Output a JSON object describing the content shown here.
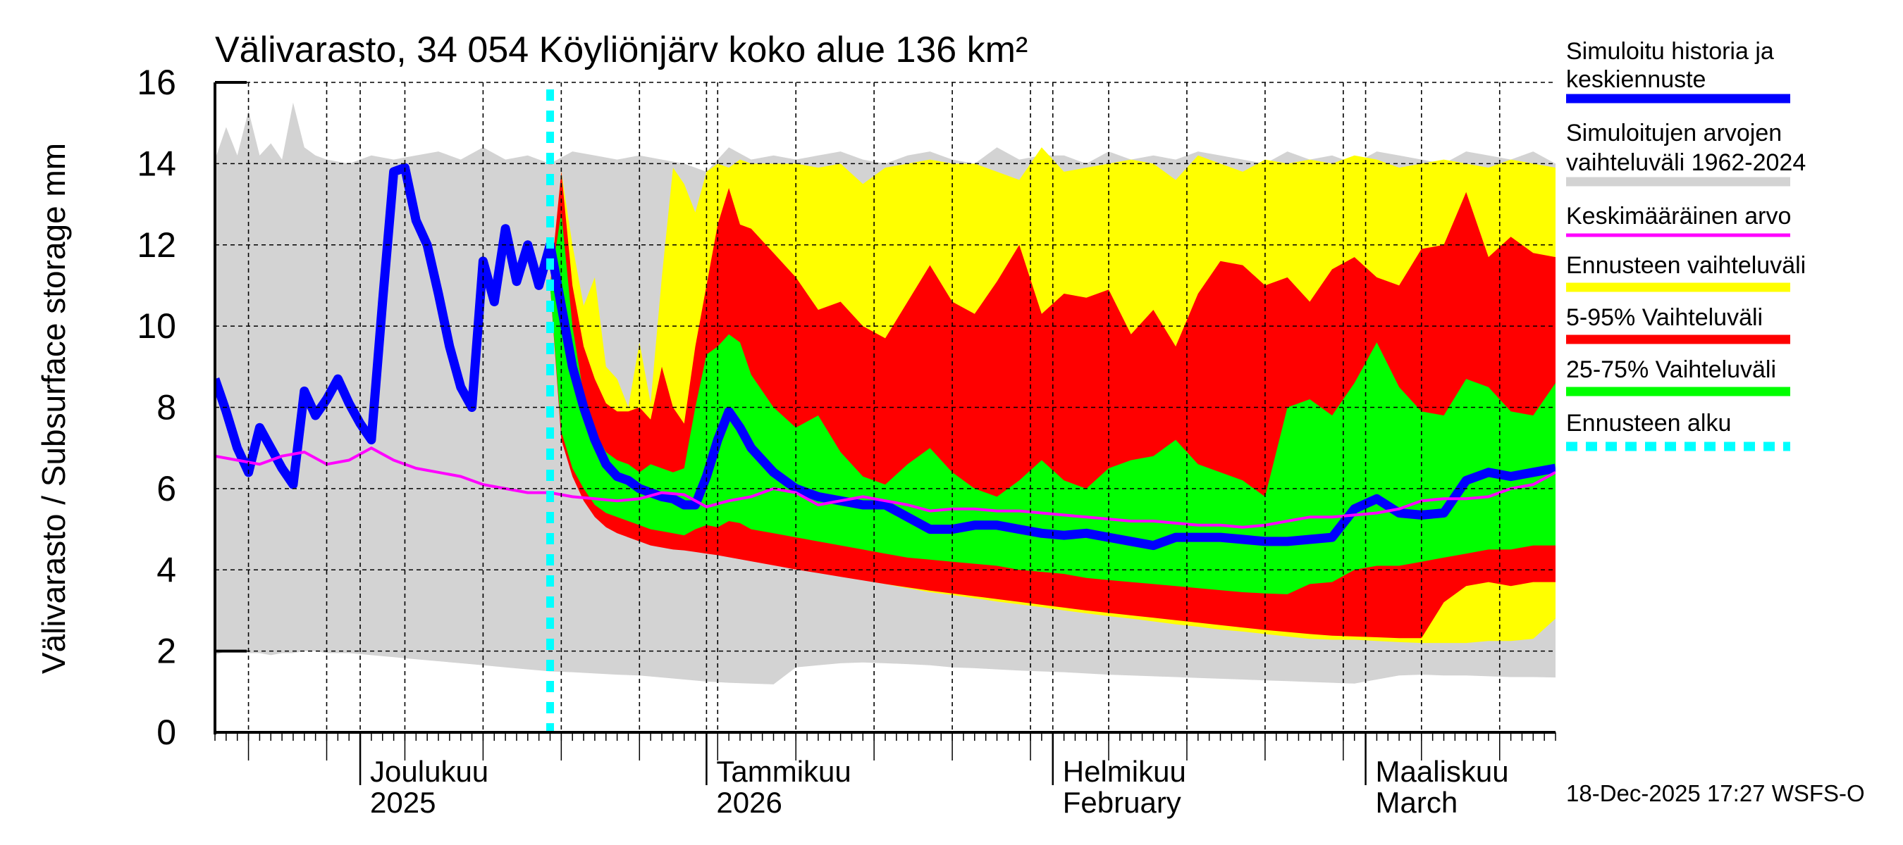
{
  "title": "Välivarasto, 34 054 Köyliönjärv koko alue 136 km²",
  "timestamp": "18-Dec-2025 17:27 WSFS-O",
  "chart_data": {
    "type": "area",
    "title": "Välivarasto, 34 054 Köyliönjärv koko alue 136 km²",
    "ylabel": "Välivarasto / Subsurface storage  mm",
    "xlabel": "",
    "ylim": [
      0,
      16
    ],
    "yticks": [
      "0",
      "2",
      "4",
      "6",
      "8",
      "10",
      "12",
      "14",
      "16"
    ],
    "x_unit": "days since 18-Nov-2025",
    "xlim": [
      0,
      120
    ],
    "grid": true,
    "months": [
      {
        "line1": "Joulukuu",
        "line2": "2025",
        "day": 13
      },
      {
        "line1": "Tammikuu",
        "line2": "2026",
        "day": 44
      },
      {
        "line1": "Helmikuu",
        "line2": "February",
        "day": 75
      },
      {
        "line1": "Maaliskuu",
        "line2": "March",
        "day": 103
      }
    ],
    "forecast_start_day": 30,
    "legend": [
      {
        "label": "Simuloitu historia ja",
        "label2": "keskiennuste",
        "color": "#0000ff",
        "style": "thick"
      },
      {
        "label": "Simuloitujen arvojen",
        "label2": "vaihteluväli 1962-2024",
        "color": "#d3d3d3",
        "style": "thick"
      },
      {
        "label": "Keskimääräinen arvo",
        "label2": "",
        "color": "#ff00ff",
        "style": "thin"
      },
      {
        "label": "Ennusteen vaihteluväli",
        "label2": "",
        "color": "#ffff00",
        "style": "thick"
      },
      {
        "label": "5-95% Vaihteluväli",
        "label2": "",
        "color": "#ff0000",
        "style": "thick"
      },
      {
        "label": "25-75% Vaihteluväli",
        "label2": "",
        "color": "#00ff00",
        "style": "thick"
      },
      {
        "label": "Ennusteen alku",
        "label2": "",
        "color": "#00ffff",
        "style": "dashed"
      }
    ],
    "series": [
      {
        "name": "Simuloitujen arvojen vaihteluväli 1962-2024",
        "kind": "band",
        "color": "#d3d3d3",
        "x": [
          0,
          1,
          2,
          3,
          4,
          5,
          6,
          7,
          8,
          9,
          10,
          12,
          14,
          16,
          18,
          20,
          22,
          24,
          26,
          28,
          30,
          32,
          34,
          36,
          38,
          40,
          42,
          44,
          46,
          48,
          50,
          52,
          54,
          56,
          58,
          60,
          62,
          64,
          66,
          68,
          70,
          72,
          74,
          76,
          78,
          80,
          82,
          84,
          86,
          88,
          90,
          92,
          94,
          96,
          98,
          100,
          102,
          104,
          106,
          108,
          110,
          112,
          114,
          116,
          118,
          120
        ],
        "upper": [
          14.1,
          14.9,
          14.2,
          15.3,
          14.2,
          14.5,
          14.1,
          15.5,
          14.4,
          14.2,
          14.1,
          14.0,
          14.2,
          14.1,
          14.2,
          14.3,
          14.1,
          14.4,
          14.1,
          14.2,
          14.0,
          14.3,
          14.2,
          14.1,
          14.2,
          14.1,
          14.0,
          13.8,
          14.4,
          14.1,
          14.2,
          14.1,
          14.2,
          14.3,
          14.1,
          14.0,
          14.2,
          14.3,
          14.1,
          14.0,
          14.4,
          14.1,
          14.2,
          14.2,
          14.0,
          14.3,
          14.1,
          14.2,
          14.1,
          14.3,
          14.2,
          14.1,
          14.0,
          14.3,
          14.1,
          14.2,
          14.0,
          14.3,
          14.2,
          14.1,
          14.0,
          14.3,
          14.2,
          14.1,
          14.3,
          14.0
        ],
        "lower": [
          1.9,
          2.0,
          2.0,
          1.95,
          1.95,
          1.9,
          1.95,
          1.95,
          2.0,
          2.0,
          1.95,
          1.95,
          1.9,
          1.85,
          1.8,
          1.75,
          1.7,
          1.65,
          1.6,
          1.55,
          1.5,
          1.48,
          1.45,
          1.42,
          1.4,
          1.35,
          1.3,
          1.25,
          1.22,
          1.2,
          1.18,
          1.6,
          1.65,
          1.7,
          1.72,
          1.7,
          1.68,
          1.65,
          1.6,
          1.58,
          1.55,
          1.52,
          1.5,
          1.48,
          1.45,
          1.42,
          1.4,
          1.38,
          1.36,
          1.34,
          1.32,
          1.3,
          1.28,
          1.26,
          1.24,
          1.22,
          1.2,
          1.3,
          1.4,
          1.42,
          1.4,
          1.4,
          1.38,
          1.36,
          1.36,
          1.35
        ]
      },
      {
        "name": "Ennusteen vaihteluväli",
        "kind": "band",
        "color": "#ffff00",
        "x": [
          30,
          31,
          32,
          33,
          34,
          35,
          36,
          37,
          38,
          39,
          40,
          41,
          42,
          43,
          44,
          45,
          46,
          47,
          48,
          50,
          52,
          54,
          56,
          58,
          60,
          62,
          64,
          66,
          68,
          70,
          72,
          74,
          76,
          78,
          80,
          82,
          84,
          86,
          88,
          90,
          92,
          94,
          96,
          98,
          100,
          102,
          104,
          106,
          108,
          110,
          112,
          114,
          116,
          118,
          120
        ],
        "upper": [
          11.0,
          13.8,
          12.0,
          10.5,
          11.2,
          9.0,
          8.7,
          8.0,
          9.6,
          8.1,
          11.2,
          13.9,
          13.5,
          12.8,
          13.8,
          14.0,
          13.9,
          14.1,
          14.0,
          14.0,
          14.0,
          13.9,
          14.0,
          13.5,
          13.9,
          14.0,
          14.1,
          14.0,
          14.0,
          13.8,
          13.6,
          14.4,
          13.8,
          13.9,
          14.0,
          14.1,
          14.0,
          13.6,
          14.2,
          14.0,
          13.8,
          14.1,
          14.0,
          14.1,
          14.0,
          14.2,
          14.1,
          13.9,
          14.0,
          14.1,
          14.0,
          13.9,
          14.1,
          14.0,
          13.9
        ],
        "lower": [
          11.0,
          7.5,
          6.5,
          5.9,
          5.5,
          5.2,
          5.0,
          4.9,
          4.8,
          4.7,
          4.65,
          4.6,
          4.55,
          4.5,
          4.45,
          4.4,
          4.35,
          4.3,
          4.25,
          4.15,
          4.05,
          3.95,
          3.85,
          3.75,
          3.65,
          3.55,
          3.45,
          3.38,
          3.3,
          3.22,
          3.15,
          3.08,
          3.0,
          2.93,
          2.86,
          2.8,
          2.73,
          2.66,
          2.6,
          2.53,
          2.48,
          2.42,
          2.36,
          2.3,
          2.28,
          2.28,
          2.25,
          2.22,
          2.2,
          2.2,
          2.2,
          2.25,
          2.25,
          2.3,
          2.8
        ]
      },
      {
        "name": "5-95% Vaihteluväli",
        "kind": "band",
        "color": "#ff0000",
        "x": [
          30,
          31,
          32,
          33,
          34,
          35,
          36,
          37,
          38,
          39,
          40,
          41,
          42,
          43,
          44,
          45,
          46,
          47,
          48,
          50,
          52,
          54,
          56,
          58,
          60,
          62,
          64,
          66,
          68,
          70,
          72,
          74,
          76,
          78,
          80,
          82,
          84,
          86,
          88,
          90,
          92,
          94,
          96,
          98,
          100,
          102,
          104,
          106,
          108,
          110,
          112,
          114,
          116,
          118,
          120
        ],
        "upper": [
          11.0,
          13.8,
          11.0,
          9.5,
          8.7,
          8.1,
          7.9,
          7.9,
          8.0,
          7.7,
          9.0,
          8.0,
          7.6,
          9.5,
          11.0,
          12.5,
          13.4,
          12.5,
          12.4,
          11.8,
          11.2,
          10.4,
          10.6,
          10.0,
          9.7,
          10.6,
          11.5,
          10.6,
          10.3,
          11.1,
          12.0,
          10.3,
          10.8,
          10.7,
          10.9,
          9.8,
          10.4,
          9.5,
          10.8,
          11.6,
          11.5,
          11.0,
          11.2,
          10.6,
          11.4,
          11.7,
          11.2,
          11.0,
          11.9,
          12.0,
          13.3,
          11.7,
          12.2,
          11.8,
          11.7
        ],
        "lower": [
          11.0,
          7.2,
          6.3,
          5.7,
          5.3,
          5.05,
          4.9,
          4.8,
          4.7,
          4.6,
          4.55,
          4.5,
          4.48,
          4.44,
          4.4,
          4.36,
          4.31,
          4.26,
          4.21,
          4.11,
          4.01,
          3.92,
          3.83,
          3.74,
          3.65,
          3.57,
          3.49,
          3.42,
          3.35,
          3.28,
          3.21,
          3.14,
          3.07,
          3.0,
          2.94,
          2.88,
          2.82,
          2.76,
          2.7,
          2.64,
          2.58,
          2.52,
          2.47,
          2.42,
          2.38,
          2.36,
          2.34,
          2.32,
          2.32,
          3.2,
          3.6,
          3.7,
          3.6,
          3.7,
          3.7
        ]
      },
      {
        "name": "25-75% Vaihteluväli",
        "kind": "band",
        "color": "#00ff00",
        "x": [
          30,
          31,
          32,
          33,
          34,
          35,
          36,
          37,
          38,
          39,
          40,
          41,
          42,
          43,
          44,
          45,
          46,
          47,
          48,
          50,
          52,
          54,
          56,
          58,
          60,
          62,
          64,
          66,
          68,
          70,
          72,
          74,
          76,
          78,
          80,
          82,
          84,
          86,
          88,
          90,
          92,
          94,
          96,
          98,
          100,
          102,
          104,
          106,
          108,
          110,
          112,
          114,
          116,
          118,
          120
        ],
        "upper": [
          11.0,
          12.8,
          10.0,
          8.3,
          7.4,
          6.9,
          6.7,
          6.6,
          6.4,
          6.6,
          6.5,
          6.4,
          6.5,
          8.0,
          9.3,
          9.5,
          9.8,
          9.6,
          8.8,
          8.0,
          7.5,
          7.8,
          6.9,
          6.3,
          6.1,
          6.6,
          7.0,
          6.4,
          6.0,
          5.8,
          6.2,
          6.7,
          6.2,
          6.0,
          6.5,
          6.7,
          6.8,
          7.2,
          6.6,
          6.4,
          6.2,
          5.8,
          8.0,
          8.2,
          7.8,
          8.6,
          9.6,
          8.5,
          7.9,
          7.8,
          8.7,
          8.5,
          7.9,
          7.8,
          8.6
        ],
        "lower": [
          11.0,
          7.4,
          6.5,
          6.0,
          5.6,
          5.4,
          5.3,
          5.2,
          5.1,
          5.0,
          4.95,
          4.9,
          4.85,
          5.0,
          5.1,
          5.05,
          5.2,
          5.15,
          5.0,
          4.9,
          4.8,
          4.7,
          4.6,
          4.5,
          4.4,
          4.3,
          4.25,
          4.2,
          4.15,
          4.1,
          4.0,
          3.95,
          3.9,
          3.8,
          3.75,
          3.7,
          3.65,
          3.6,
          3.55,
          3.5,
          3.45,
          3.42,
          3.4,
          3.65,
          3.7,
          4.0,
          4.1,
          4.1,
          4.2,
          4.3,
          4.4,
          4.5,
          4.5,
          4.6,
          4.6
        ]
      },
      {
        "name": "Simuloitu historia ja keskiennuste",
        "kind": "line",
        "color": "#0000ff",
        "x": [
          0,
          1,
          2,
          3,
          4,
          5,
          6,
          7,
          8,
          9,
          10,
          11,
          12,
          13,
          14,
          15,
          16,
          17,
          18,
          19,
          20,
          21,
          22,
          23,
          24,
          25,
          26,
          27,
          28,
          29,
          30,
          31,
          32,
          33,
          34,
          35,
          36,
          37,
          38,
          39,
          40,
          41,
          42,
          43,
          44,
          45,
          46,
          47,
          48,
          50,
          52,
          54,
          56,
          58,
          60,
          62,
          64,
          66,
          68,
          70,
          72,
          74,
          76,
          78,
          80,
          82,
          84,
          86,
          88,
          90,
          92,
          94,
          96,
          98,
          100,
          102,
          104,
          106,
          108,
          110,
          112,
          114,
          116,
          118,
          120
        ],
        "values": [
          8.7,
          7.9,
          7.0,
          6.4,
          7.5,
          7.0,
          6.5,
          6.1,
          8.4,
          7.8,
          8.2,
          8.7,
          8.1,
          7.6,
          7.2,
          10.6,
          13.8,
          13.9,
          12.6,
          12.0,
          10.8,
          9.5,
          8.5,
          8.0,
          11.6,
          10.6,
          12.4,
          11.1,
          12.0,
          11.0,
          12.0,
          10.5,
          9.0,
          8.0,
          7.2,
          6.6,
          6.3,
          6.2,
          6.0,
          5.9,
          5.8,
          5.75,
          5.6,
          5.6,
          6.3,
          7.2,
          7.9,
          7.5,
          7.0,
          6.4,
          6.0,
          5.8,
          5.7,
          5.6,
          5.6,
          5.3,
          5.0,
          5.0,
          5.1,
          5.1,
          5.0,
          4.9,
          4.85,
          4.9,
          4.8,
          4.7,
          4.6,
          4.8,
          4.8,
          4.8,
          4.75,
          4.7,
          4.7,
          4.75,
          4.8,
          5.5,
          5.75,
          5.4,
          5.35,
          5.4,
          6.2,
          6.4,
          6.3,
          6.4,
          6.5
        ]
      },
      {
        "name": "Keskimääräinen arvo",
        "kind": "line",
        "color": "#ff00ff",
        "x": [
          0,
          2,
          4,
          6,
          8,
          10,
          12,
          14,
          16,
          18,
          20,
          22,
          24,
          26,
          28,
          30,
          32,
          34,
          36,
          38,
          40,
          42,
          44,
          46,
          48,
          50,
          52,
          54,
          56,
          58,
          60,
          62,
          64,
          66,
          68,
          70,
          72,
          74,
          76,
          78,
          80,
          82,
          84,
          86,
          88,
          90,
          92,
          94,
          96,
          98,
          100,
          102,
          104,
          106,
          108,
          110,
          112,
          114,
          116,
          118,
          120
        ],
        "values": [
          6.8,
          6.7,
          6.6,
          6.8,
          6.9,
          6.6,
          6.7,
          7.0,
          6.7,
          6.5,
          6.4,
          6.3,
          6.1,
          6.0,
          5.9,
          5.9,
          5.8,
          5.75,
          5.7,
          5.75,
          5.9,
          5.85,
          5.55,
          5.7,
          5.8,
          6.0,
          5.9,
          5.6,
          5.7,
          5.8,
          5.7,
          5.6,
          5.45,
          5.5,
          5.5,
          5.45,
          5.45,
          5.4,
          5.35,
          5.3,
          5.25,
          5.2,
          5.2,
          5.15,
          5.1,
          5.1,
          5.05,
          5.1,
          5.2,
          5.3,
          5.3,
          5.35,
          5.4,
          5.5,
          5.7,
          5.75,
          5.75,
          5.8,
          6.0,
          6.1,
          6.4
        ]
      }
    ]
  }
}
